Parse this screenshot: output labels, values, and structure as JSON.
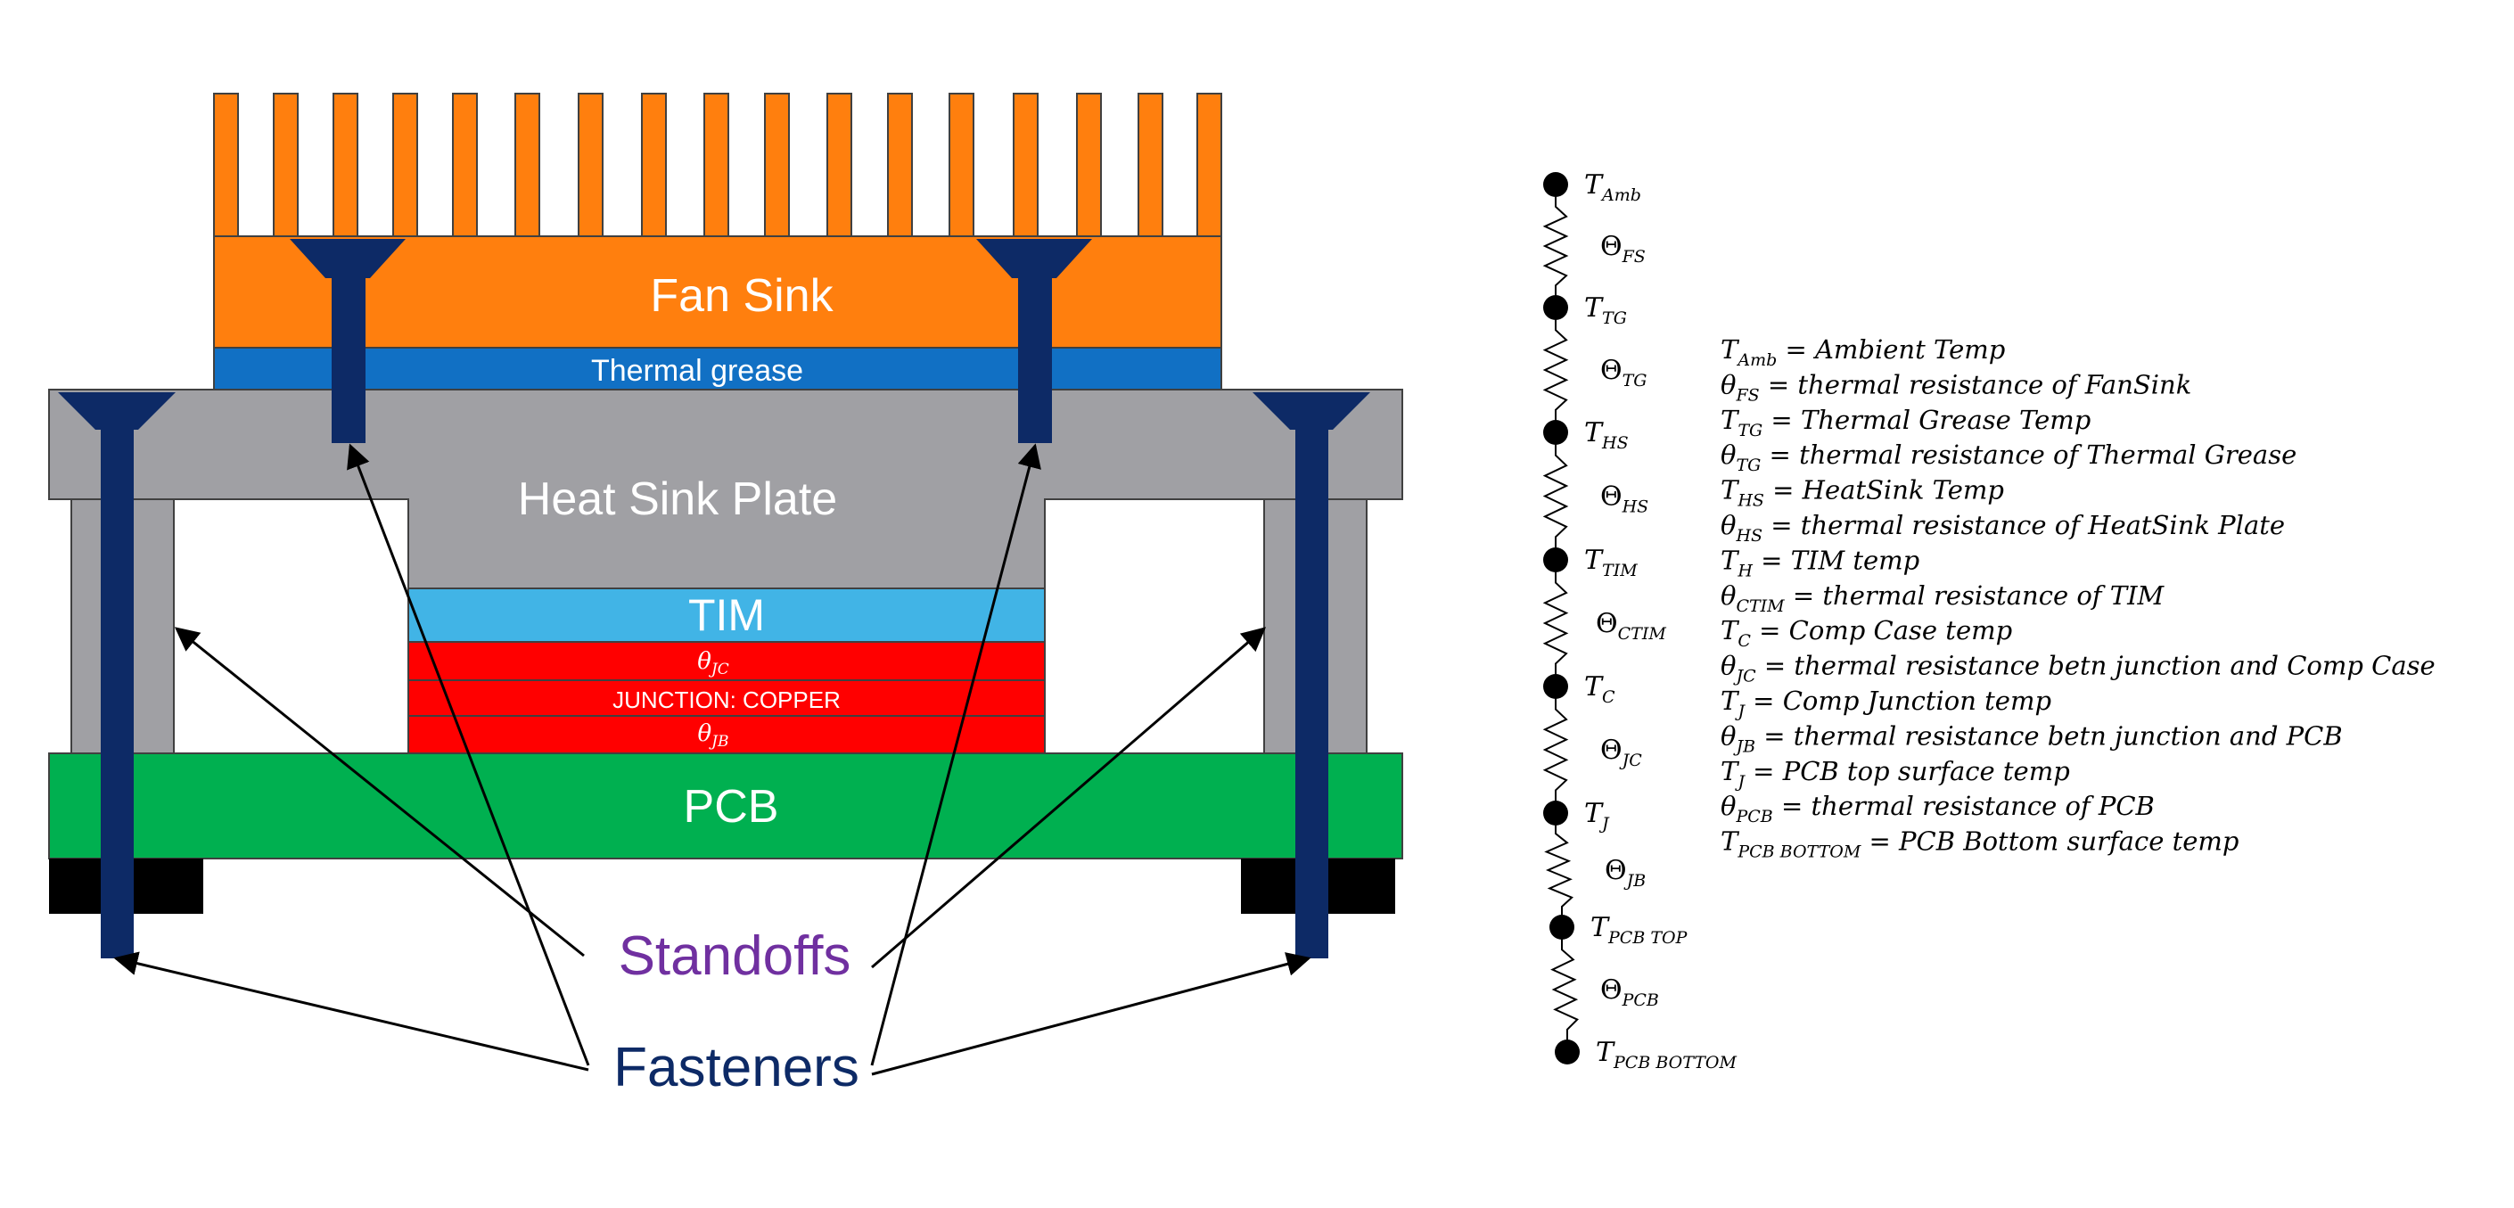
{
  "colors": {
    "fan_sink": "#FF7F0E",
    "thermal_grease": "#1170C4",
    "heat_sink_plate": "#A0A0A4",
    "tim": "#41B4E6",
    "junction": "#FF0000",
    "pcb": "#00B050",
    "fastener": "#0D2A66",
    "standoff_label": "#7030A0",
    "fastener_label": "#0D2A66",
    "black": "#000000"
  },
  "diagram": {
    "fan_sink_label": "Fan Sink",
    "thermal_grease_label": "Thermal grease",
    "heat_sink_plate_label": "Heat Sink Plate",
    "tim_label": "TIM",
    "theta_jc_label": "θ",
    "theta_jc_sub": "JC",
    "junction_label": "JUNCTION: COPPER",
    "theta_jb_label": "θ",
    "theta_jb_sub": "JB",
    "pcb_label": "PCB",
    "standoffs_label": "Standoffs",
    "fasteners_label": "Fasteners"
  },
  "network": {
    "nodes": [
      {
        "main": "T",
        "sub": "Amb"
      },
      {
        "main": "T",
        "sub": "TG"
      },
      {
        "main": "T",
        "sub": "HS"
      },
      {
        "main": "T",
        "sub": "TIM"
      },
      {
        "main": "T",
        "sub": "C"
      },
      {
        "main": "T",
        "sub": "J"
      },
      {
        "main": "T",
        "sub": "PCB TOP"
      },
      {
        "main": "T",
        "sub": "PCB BOTTOM"
      }
    ],
    "resistors": [
      {
        "main": "Θ",
        "sub": "FS"
      },
      {
        "main": "Θ",
        "sub": "TG"
      },
      {
        "main": "Θ",
        "sub": "HS"
      },
      {
        "main": "Θ",
        "sub": "CTIM"
      },
      {
        "main": "Θ",
        "sub": "JC"
      },
      {
        "main": "Θ",
        "sub": "JB"
      },
      {
        "main": "Θ",
        "sub": "PCB"
      }
    ]
  },
  "legend": [
    {
      "main": "T",
      "sub": "Amb",
      "text": " = Ambient Temp"
    },
    {
      "main": "θ",
      "sub": "FS",
      "text": " = thermal resistance of FanSink"
    },
    {
      "main": "T",
      "sub": "TG",
      "text": " = Thermal Grease Temp"
    },
    {
      "main": "θ",
      "sub": "TG",
      "text": " = thermal resistance of Thermal Grease"
    },
    {
      "main": "T",
      "sub": "HS",
      "text": " = HeatSink Temp"
    },
    {
      "main": "θ",
      "sub": "HS",
      "text": " = thermal resistance of HeatSink Plate"
    },
    {
      "main": "T",
      "sub": "H",
      "text": " = TIM temp"
    },
    {
      "main": "θ",
      "sub": "CTIM",
      "text": " = thermal resistance of TIM"
    },
    {
      "main": "T",
      "sub": "C",
      "text": " = Comp Case temp"
    },
    {
      "main": "θ",
      "sub": "JC",
      "text": " = thermal resistance betn junction and Comp Case"
    },
    {
      "main": "T",
      "sub": "J",
      "text": " = Comp Junction temp"
    },
    {
      "main": "θ",
      "sub": "JB",
      "text": " = thermal resistance betn junction and PCB"
    },
    {
      "main": "T",
      "sub": "J",
      "text": " = PCB top surface temp"
    },
    {
      "main": "θ",
      "sub": "PCB",
      "text": " = thermal resistance of PCB"
    },
    {
      "main": "T",
      "sub": "PCB BOTTOM",
      "text": " = PCB Bottom surface temp"
    }
  ]
}
